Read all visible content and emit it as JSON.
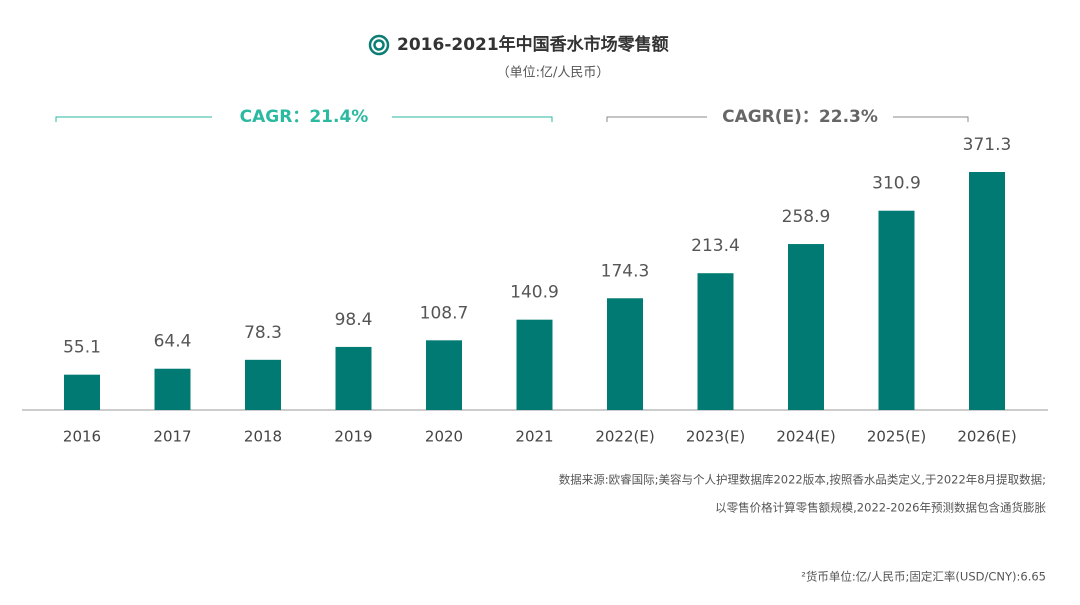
{
  "chart_data": {
    "type": "bar",
    "title": "2016-2021年中国香水市场零售额",
    "subtitle": "（单位:亿/人民币）",
    "annotations": [
      "CAGR：21.4%",
      "CAGR(E)：22.3%"
    ],
    "categories": [
      "2016",
      "2017",
      "2018",
      "2019",
      "2020",
      "2021",
      "2022(E)",
      "2023(E)",
      "2024(E)",
      "2025(E)",
      "2026(E)"
    ],
    "values": [
      55.1,
      64.4,
      78.3,
      98.4,
      108.7,
      140.9,
      174.3,
      213.4,
      258.9,
      310.9,
      371.3
    ],
    "color": "#007a72",
    "notes": [
      "数据来源:欧睿国际;美容与个人护理数据库2022版本,按照香水品类定义,于2022年8月提取数据;",
      "以零售价格计算零售额规模,2022-2026年预测数据包含通货膨胀",
      "²货币单位:亿/人民币;固定汇率(USD/CNY):6.65"
    ]
  }
}
